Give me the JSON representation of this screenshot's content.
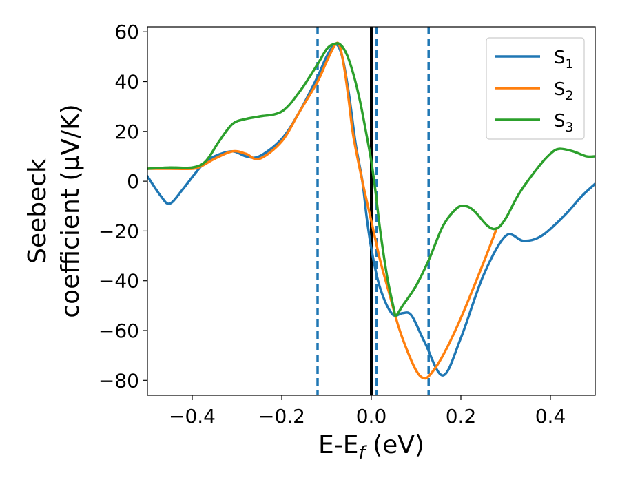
{
  "chart_data": {
    "type": "line",
    "xlabel": "E-E",
    "xlabel_sub": "f",
    "xlabel_suffix": " (eV)",
    "ylabel_line1": "Seebeck",
    "ylabel_line2": "coefficient  (μV/K)",
    "xlim": [
      -0.5,
      0.5
    ],
    "ylim": [
      -86,
      62
    ],
    "xticks": [
      -0.4,
      -0.2,
      0.0,
      0.2,
      0.4
    ],
    "xtick_labels": [
      "−0.4",
      "−0.2",
      "0.0",
      "0.2",
      "0.4"
    ],
    "yticks": [
      -80,
      -60,
      -40,
      -20,
      0,
      20,
      40,
      60
    ],
    "ytick_labels": [
      "−80",
      "−60",
      "−40",
      "−20",
      "0",
      "20",
      "40",
      "60"
    ],
    "grid": false,
    "legend_position": "top-right",
    "vertical_lines": [
      {
        "x": 0.0,
        "style": "solid",
        "color": "#000000"
      },
      {
        "x": -0.12,
        "style": "dashed",
        "color": "#1f77b4"
      },
      {
        "x": 0.012,
        "style": "dashed",
        "color": "#1f77b4"
      },
      {
        "x": 0.128,
        "style": "dashed",
        "color": "#1f77b4"
      }
    ],
    "series": [
      {
        "name": "S",
        "name_sub": "1",
        "color": "#1f77b4",
        "x": [
          -0.5,
          -0.47,
          -0.45,
          -0.42,
          -0.38,
          -0.35,
          -0.31,
          -0.28,
          -0.25,
          -0.2,
          -0.16,
          -0.12,
          -0.1,
          -0.08,
          -0.065,
          -0.05,
          -0.035,
          -0.02,
          -0.01,
          0.0,
          0.015,
          0.03,
          0.045,
          0.055,
          0.07,
          0.09,
          0.12,
          0.16,
          0.2,
          0.25,
          0.3,
          0.34,
          0.38,
          0.43,
          0.47,
          0.5
        ],
        "y": [
          2,
          -6,
          -9,
          -3,
          6,
          10,
          12,
          10,
          10,
          17,
          28,
          42,
          50,
          55,
          50,
          35,
          15,
          0,
          -15,
          -27,
          -40,
          -48,
          -53,
          -54,
          -53,
          -54,
          -65,
          -78,
          -63,
          -38,
          -22,
          -24,
          -22,
          -14,
          -6,
          -1
        ]
      },
      {
        "name": "S",
        "name_sub": "2",
        "color": "#ff7f0e",
        "x": [
          -0.5,
          -0.45,
          -0.4,
          -0.38,
          -0.35,
          -0.31,
          -0.28,
          -0.25,
          -0.2,
          -0.16,
          -0.12,
          -0.1,
          -0.08,
          -0.07,
          -0.06,
          -0.05,
          -0.04,
          -0.02,
          0.0,
          0.02,
          0.04,
          0.06,
          0.08,
          0.1,
          0.115,
          0.13,
          0.16,
          0.2,
          0.25,
          0.28
        ],
        "y": [
          5,
          5,
          5,
          6,
          9,
          12,
          11,
          9,
          16,
          28,
          40,
          48,
          55,
          54,
          45,
          32,
          18,
          0,
          -16,
          -32,
          -45,
          -58,
          -68,
          -76,
          -79,
          -78,
          -70,
          -55,
          -33,
          -19
        ]
      },
      {
        "name": "S",
        "name_sub": "3",
        "color": "#2ca02c",
        "x": [
          -0.5,
          -0.45,
          -0.4,
          -0.37,
          -0.34,
          -0.31,
          -0.28,
          -0.25,
          -0.2,
          -0.16,
          -0.12,
          -0.1,
          -0.085,
          -0.07,
          -0.055,
          -0.04,
          -0.025,
          -0.01,
          0.0,
          0.01,
          0.02,
          0.035,
          0.05,
          0.055,
          0.07,
          0.1,
          0.13,
          0.16,
          0.19,
          0.21,
          0.23,
          0.26,
          0.28,
          0.3,
          0.33,
          0.37,
          0.4,
          0.42,
          0.45,
          0.48,
          0.5
        ],
        "y": [
          5,
          5.5,
          5.5,
          8,
          16,
          23,
          25,
          26,
          28,
          36,
          47,
          53,
          55,
          55,
          51,
          43,
          32,
          18,
          8,
          -5,
          -20,
          -38,
          -51,
          -54,
          -50,
          -42,
          -31,
          -18,
          -11,
          -10,
          -12,
          -18,
          -19,
          -15,
          -5,
          5,
          11,
          13,
          12,
          10,
          10
        ]
      }
    ]
  }
}
